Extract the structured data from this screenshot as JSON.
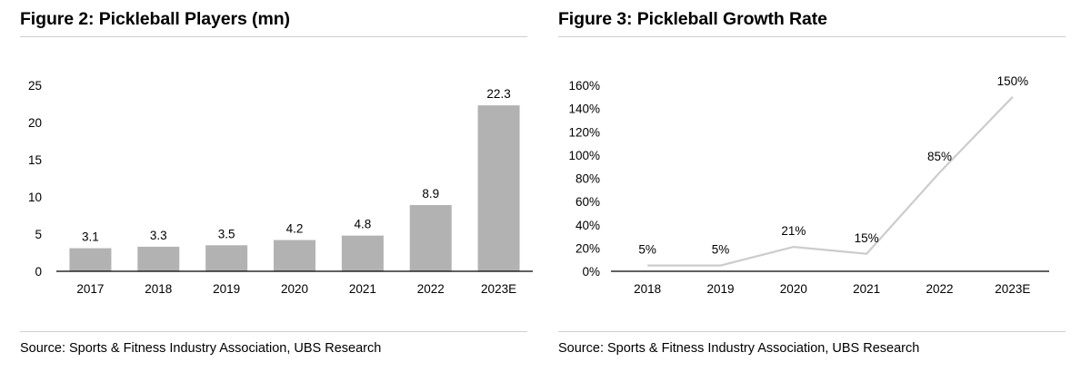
{
  "chart_data": [
    {
      "type": "bar",
      "title": "Figure 2: Pickleball Players (mn)",
      "categories": [
        "2017",
        "2018",
        "2019",
        "2020",
        "2021",
        "2022",
        "2023E"
      ],
      "values": [
        3.1,
        3.3,
        3.5,
        4.2,
        4.8,
        8.9,
        22.3
      ],
      "data_labels": [
        "3.1",
        "3.3",
        "3.5",
        "4.2",
        "4.8",
        "8.9",
        "22.3"
      ],
      "ylim": [
        0,
        25
      ],
      "yticks": [
        "0",
        "5",
        "10",
        "15",
        "20",
        "25"
      ],
      "bar_color": "#b2b2b2",
      "grid": false,
      "source": "Source: Sports & Fitness Industry Association, UBS Research"
    },
    {
      "type": "line",
      "title": "Figure 3: Pickleball Growth Rate",
      "categories": [
        "2018",
        "2019",
        "2020",
        "2021",
        "2022",
        "2023E"
      ],
      "values": [
        5,
        5,
        21,
        15,
        85,
        150
      ],
      "data_labels": [
        "5%",
        "5%",
        "21%",
        "15%",
        "85%",
        "150%"
      ],
      "ylim": [
        0,
        160
      ],
      "yticks": [
        "0%",
        "20%",
        "40%",
        "60%",
        "80%",
        "100%",
        "120%",
        "140%",
        "160%"
      ],
      "line_color": "#cccccc",
      "grid": false,
      "source": "Source: Sports & Fitness Industry Association, UBS Research"
    }
  ]
}
